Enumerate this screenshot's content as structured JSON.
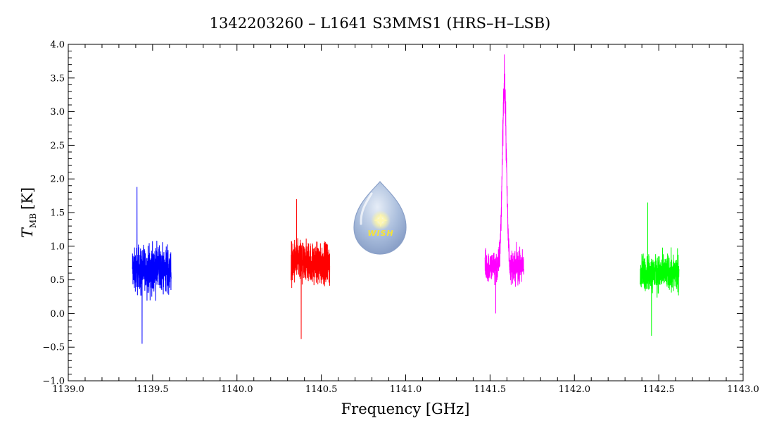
{
  "chart_data": {
    "type": "line",
    "title": "1342203260 – L1641 S3MMS1 (HRS–H–LSB)",
    "xlabel": "Frequency [GHz]",
    "ylabel_main": "T",
    "ylabel_sub": "MB",
    "ylabel_unit": "[K]",
    "xlim": [
      1139.0,
      1143.0
    ],
    "ylim": [
      -1.0,
      4.0
    ],
    "x_ticks": [
      "1139.0",
      "1139.5",
      "1140.0",
      "1140.5",
      "1141.0",
      "1141.5",
      "1142.0",
      "1142.5",
      "1143.0"
    ],
    "y_ticks": [
      "−1.0",
      "−0.5",
      "0.0",
      "0.5",
      "1.0",
      "1.5",
      "2.0",
      "2.5",
      "3.0",
      "3.5",
      "4.0"
    ],
    "grid": false,
    "logo_text": "WISH",
    "series": [
      {
        "color": "#0000ff",
        "x_range": [
          1139.38,
          1139.61
        ],
        "baseline": 0.65,
        "noise": 0.5,
        "min": -0.45,
        "max": 1.88
      },
      {
        "color": "#ff0000",
        "x_range": [
          1140.32,
          1140.55
        ],
        "baseline": 0.75,
        "noise": 0.45,
        "min": -0.38,
        "max": 1.7
      },
      {
        "color": "#ff00ff",
        "x_range": [
          1141.47,
          1141.7
        ],
        "baseline": 0.7,
        "noise": 0.35,
        "min": 0.0,
        "max": 3.85,
        "peak_center": 1141.585,
        "peak_amp": 2.7,
        "peak_width": 0.012
      },
      {
        "color": "#00ff00",
        "x_range": [
          1142.39,
          1142.62
        ],
        "baseline": 0.6,
        "noise": 0.4,
        "min": -0.33,
        "max": 1.65
      }
    ]
  }
}
